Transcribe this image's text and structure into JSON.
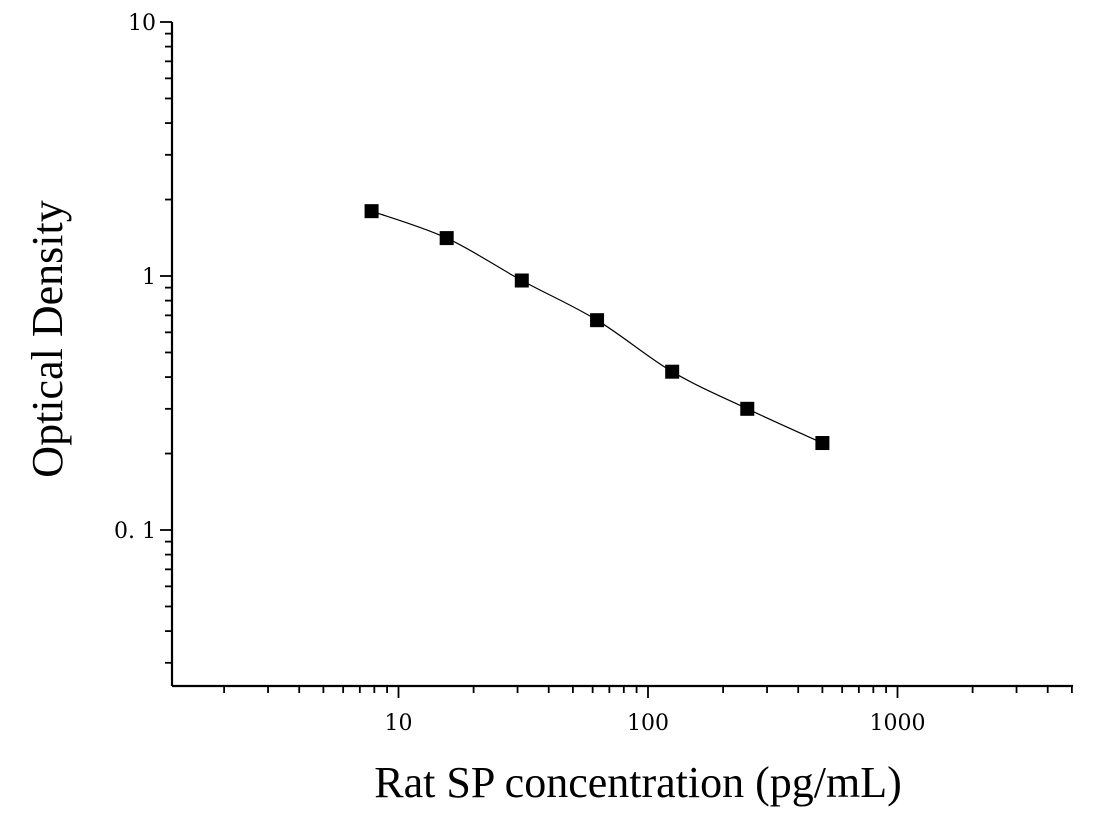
{
  "chart_data": {
    "type": "scatter",
    "xlabel": "Rat SP concentration (pg/mL)",
    "ylabel": "Optical Density",
    "xscale": "log",
    "yscale": "log",
    "xlim": [
      1.25,
      5500
    ],
    "ylim": [
      0.027,
      10
    ],
    "x_ticks": [
      10,
      100,
      1000
    ],
    "x_tick_labels": [
      "10",
      "100",
      "1000"
    ],
    "y_ticks": [
      0.1,
      1,
      10
    ],
    "y_tick_labels": [
      "0. 1",
      "1",
      "10"
    ],
    "grid": false,
    "legend": "none",
    "marker": "square",
    "color": "#000000",
    "series": [
      {
        "points": [
          {
            "x": 7.8,
            "y": 1.8
          },
          {
            "x": 15.6,
            "y": 1.41
          },
          {
            "x": 31.2,
            "y": 0.96
          },
          {
            "x": 62.5,
            "y": 0.67
          },
          {
            "x": 125,
            "y": 0.42
          },
          {
            "x": 250,
            "y": 0.3
          },
          {
            "x": 500,
            "y": 0.22
          }
        ]
      }
    ]
  }
}
